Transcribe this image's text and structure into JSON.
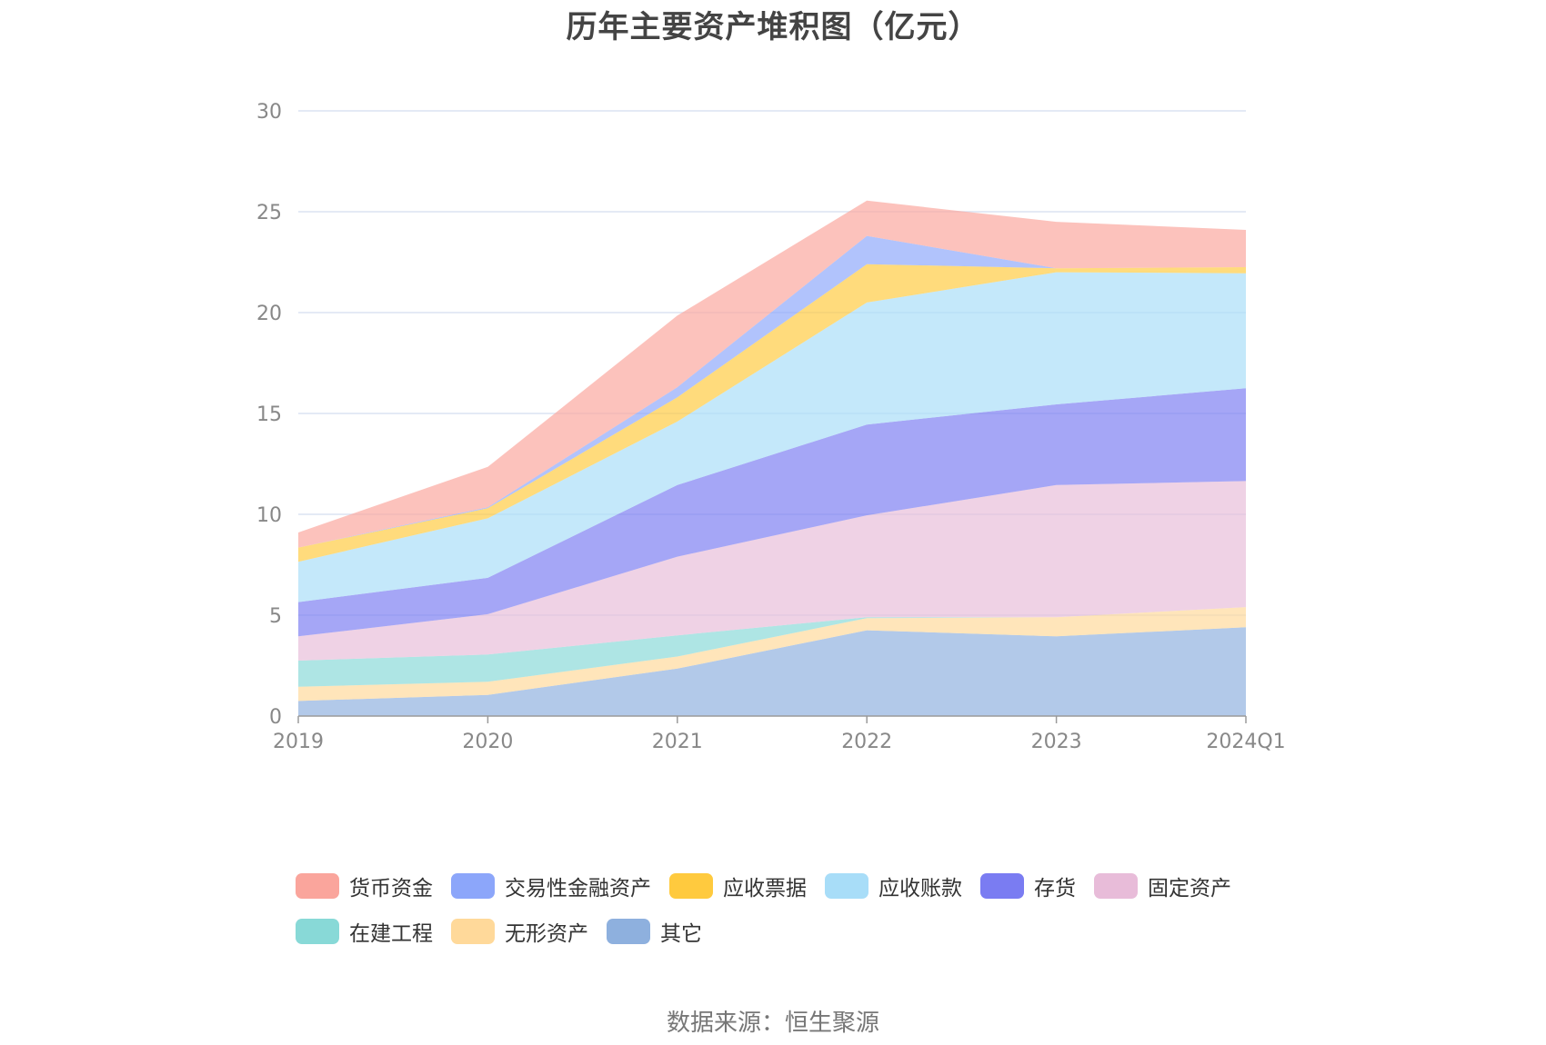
{
  "page": {
    "title": "历年主要资产堆积图（亿元）",
    "source": "数据来源：恒生聚源"
  },
  "chart_data": {
    "type": "area",
    "stacked": true,
    "title": "历年主要资产堆积图（亿元）",
    "xlabel": "",
    "ylabel": "",
    "categories": [
      "2019",
      "2020",
      "2021",
      "2022",
      "2023",
      "2024Q1"
    ],
    "ylim": [
      0,
      30
    ],
    "yticks": [
      0,
      5,
      10,
      15,
      20,
      25,
      30
    ],
    "grid": true,
    "legend_position": "bottom",
    "series": [
      {
        "name": "其它",
        "color": "#8EB0DE",
        "values": [
          0.75,
          1.05,
          2.35,
          4.25,
          3.95,
          4.4
        ]
      },
      {
        "name": "无形资产",
        "color": "#FFD99A",
        "values": [
          0.7,
          0.65,
          0.6,
          0.6,
          0.95,
          1.0
        ]
      },
      {
        "name": "在建工程",
        "color": "#88D9D7",
        "values": [
          1.3,
          1.35,
          1.05,
          0.05,
          0.0,
          0.0
        ]
      },
      {
        "name": "固定资产",
        "color": "#E8BCD9",
        "values": [
          1.2,
          2.0,
          3.9,
          5.05,
          6.55,
          6.25
        ]
      },
      {
        "name": "存货",
        "color": "#7A7CF2",
        "values": [
          1.7,
          1.8,
          3.55,
          4.5,
          4.0,
          4.6
        ]
      },
      {
        "name": "应收账款",
        "color": "#A8DDF8",
        "values": [
          2.0,
          2.95,
          3.15,
          6.05,
          6.55,
          5.7
        ]
      },
      {
        "name": "应收票据",
        "color": "#FFCA3E",
        "values": [
          0.7,
          0.5,
          1.2,
          1.9,
          0.2,
          0.3
        ]
      },
      {
        "name": "交易性金融资产",
        "color": "#8CA6FA",
        "values": [
          0.0,
          0.05,
          0.5,
          1.4,
          0.0,
          0.0
        ]
      },
      {
        "name": "货币资金",
        "color": "#FAA59C",
        "values": [
          0.75,
          2.0,
          3.55,
          1.75,
          2.3,
          1.85
        ]
      }
    ]
  },
  "legend": {
    "rows": [
      [
        {
          "label": "货币资金",
          "color": "#FAA59C"
        },
        {
          "label": "交易性金融资产",
          "color": "#8CA6FA"
        },
        {
          "label": "应收票据",
          "color": "#FFCA3E"
        },
        {
          "label": "应收账款",
          "color": "#A8DDF8"
        },
        {
          "label": "存货",
          "color": "#7A7CF2"
        },
        {
          "label": "固定资产",
          "color": "#E8BCD9"
        }
      ],
      [
        {
          "label": "在建工程",
          "color": "#88D9D7"
        },
        {
          "label": "无形资产",
          "color": "#FFD99A"
        },
        {
          "label": "其它",
          "color": "#8EB0DE"
        }
      ]
    ]
  }
}
